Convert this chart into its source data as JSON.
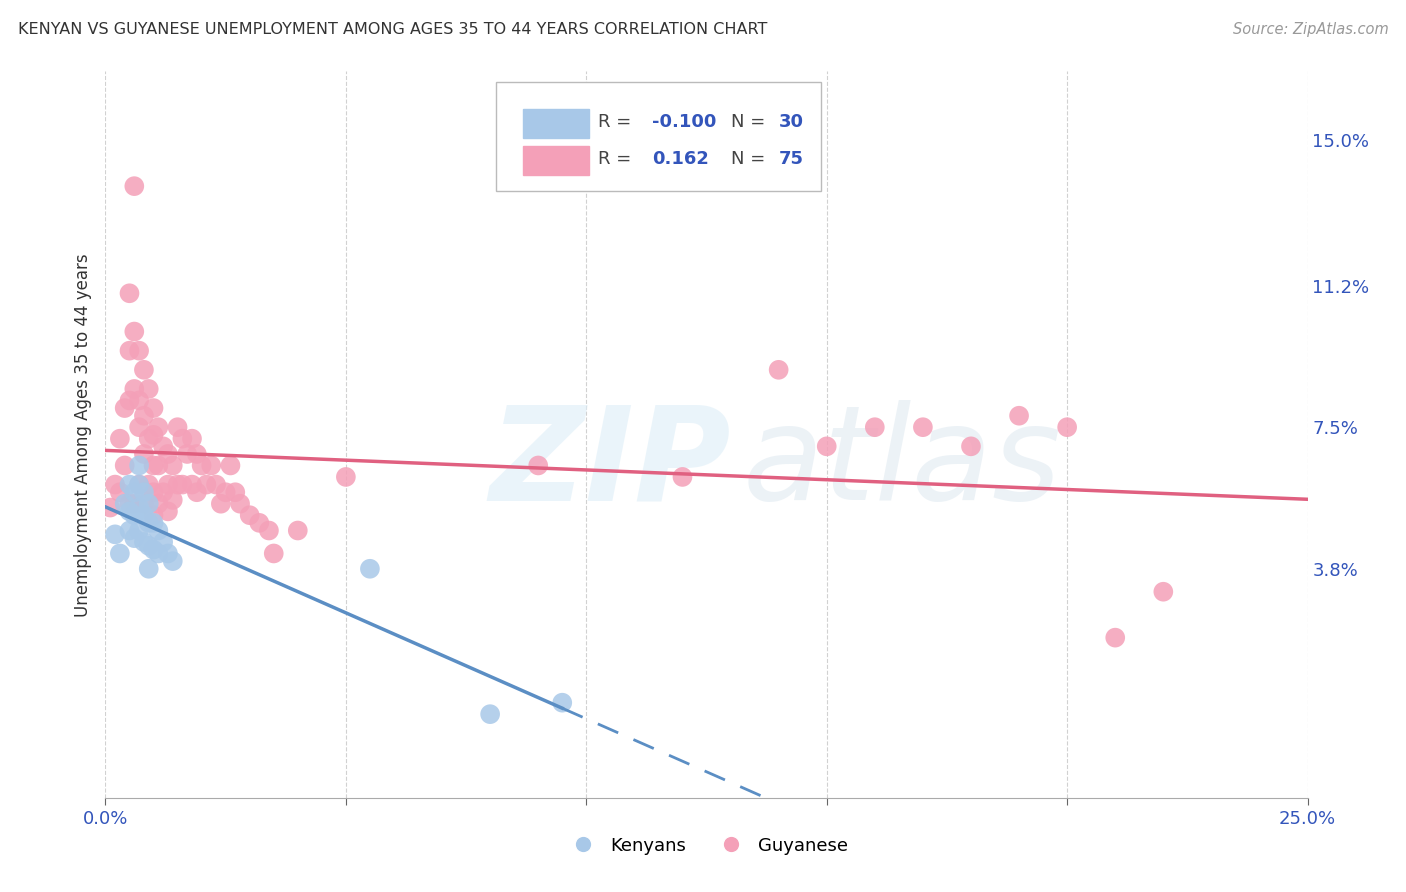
{
  "title": "KENYAN VS GUYANESE UNEMPLOYMENT AMONG AGES 35 TO 44 YEARS CORRELATION CHART",
  "source": "Source: ZipAtlas.com",
  "ylabel": "Unemployment Among Ages 35 to 44 years",
  "xlim": [
    0.0,
    0.25
  ],
  "ylim": [
    -0.022,
    0.168
  ],
  "kenyan_color": "#a8c8e8",
  "guyanese_color": "#f4a0b8",
  "kenyan_line_color": "#5b8ec4",
  "guyanese_line_color": "#e06080",
  "background_color": "#ffffff",
  "grid_color": "#cccccc",
  "y_ticks_right": [
    0.038,
    0.075,
    0.112,
    0.15
  ],
  "y_tick_labels_right": [
    "3.8%",
    "7.5%",
    "11.2%",
    "15.0%"
  ],
  "kenyan_x": [
    0.002,
    0.003,
    0.004,
    0.005,
    0.005,
    0.005,
    0.006,
    0.006,
    0.006,
    0.007,
    0.007,
    0.007,
    0.007,
    0.008,
    0.008,
    0.008,
    0.009,
    0.009,
    0.009,
    0.009,
    0.01,
    0.01,
    0.011,
    0.011,
    0.012,
    0.013,
    0.014,
    0.055,
    0.08,
    0.095
  ],
  "kenyan_y": [
    0.047,
    0.042,
    0.055,
    0.06,
    0.053,
    0.048,
    0.058,
    0.052,
    0.046,
    0.065,
    0.06,
    0.054,
    0.048,
    0.058,
    0.052,
    0.045,
    0.055,
    0.05,
    0.044,
    0.038,
    0.05,
    0.043,
    0.048,
    0.042,
    0.045,
    0.042,
    0.04,
    0.038,
    0.0,
    0.003
  ],
  "guyanese_x": [
    0.001,
    0.002,
    0.003,
    0.003,
    0.004,
    0.004,
    0.005,
    0.005,
    0.005,
    0.005,
    0.006,
    0.006,
    0.006,
    0.006,
    0.007,
    0.007,
    0.007,
    0.007,
    0.008,
    0.008,
    0.008,
    0.008,
    0.009,
    0.009,
    0.009,
    0.01,
    0.01,
    0.01,
    0.01,
    0.01,
    0.011,
    0.011,
    0.011,
    0.012,
    0.012,
    0.013,
    0.013,
    0.013,
    0.014,
    0.014,
    0.015,
    0.015,
    0.016,
    0.016,
    0.017,
    0.018,
    0.018,
    0.019,
    0.019,
    0.02,
    0.021,
    0.022,
    0.023,
    0.024,
    0.025,
    0.026,
    0.027,
    0.028,
    0.03,
    0.032,
    0.034,
    0.035,
    0.04,
    0.05,
    0.09,
    0.12,
    0.14,
    0.15,
    0.16,
    0.17,
    0.18,
    0.19,
    0.2,
    0.21,
    0.22
  ],
  "guyanese_y": [
    0.054,
    0.06,
    0.072,
    0.058,
    0.08,
    0.065,
    0.11,
    0.095,
    0.082,
    0.055,
    0.138,
    0.1,
    0.085,
    0.055,
    0.095,
    0.082,
    0.075,
    0.06,
    0.09,
    0.078,
    0.068,
    0.055,
    0.085,
    0.072,
    0.06,
    0.08,
    0.073,
    0.065,
    0.058,
    0.052,
    0.075,
    0.065,
    0.055,
    0.07,
    0.058,
    0.068,
    0.06,
    0.053,
    0.065,
    0.056,
    0.075,
    0.06,
    0.072,
    0.06,
    0.068,
    0.072,
    0.06,
    0.068,
    0.058,
    0.065,
    0.06,
    0.065,
    0.06,
    0.055,
    0.058,
    0.065,
    0.058,
    0.055,
    0.052,
    0.05,
    0.048,
    0.042,
    0.048,
    0.062,
    0.065,
    0.062,
    0.09,
    0.07,
    0.075,
    0.075,
    0.07,
    0.078,
    0.075,
    0.02,
    0.032
  ]
}
